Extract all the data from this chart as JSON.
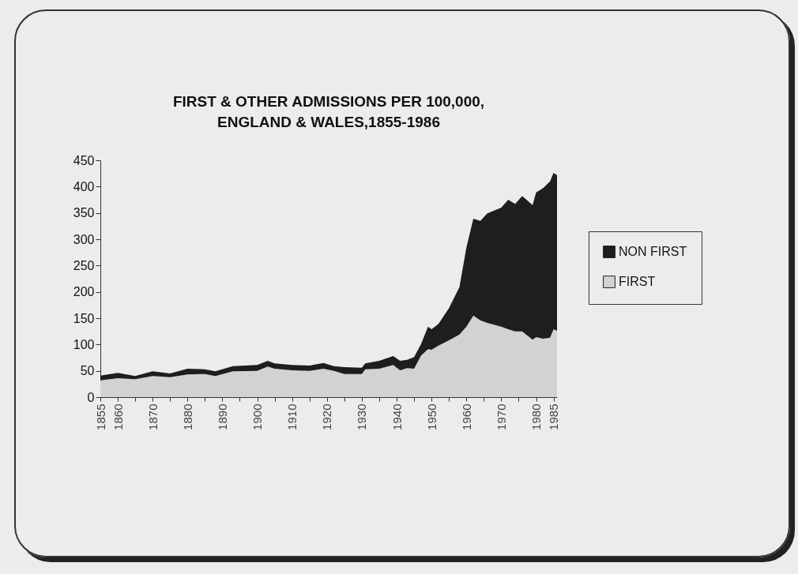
{
  "chart_data": {
    "type": "area",
    "title": "FIRST & OTHER ADMISSIONS PER 100,000,\nENGLAND & WALES,1855-1986",
    "stacked": true,
    "legend": "right",
    "grid": false,
    "x": [
      1855,
      1860,
      1865,
      1870,
      1875,
      1880,
      1885,
      1888,
      1893,
      1900,
      1903,
      1905,
      1910,
      1915,
      1919,
      1922,
      1925,
      1930,
      1931,
      1935,
      1939,
      1941,
      1943,
      1945,
      1947,
      1949,
      1950,
      1952,
      1955,
      1958,
      1960,
      1962,
      1964,
      1966,
      1970,
      1972,
      1974,
      1976,
      1979,
      1980,
      1982,
      1984,
      1985,
      1986
    ],
    "series": [
      {
        "name": "FIRST",
        "color": "#d2d2d2",
        "values": [
          32,
          36,
          34,
          40,
          38,
          43,
          44,
          40,
          49,
          50,
          58,
          54,
          51,
          50,
          54,
          50,
          44,
          44,
          53,
          54,
          61,
          51,
          55,
          54,
          79,
          91,
          90,
          98,
          108,
          119,
          134,
          155,
          146,
          141,
          134,
          129,
          125,
          125,
          109,
          114,
          111,
          113,
          129,
          126
        ]
      },
      {
        "name": "NON FIRST",
        "color": "#1e1e1e",
        "values": [
          9,
          10,
          6,
          9,
          7,
          11,
          9,
          9,
          10,
          11,
          11,
          10,
          10,
          10,
          11,
          9,
          13,
          12,
          11,
          15,
          17,
          18,
          16,
          22,
          22,
          43,
          39,
          41,
          61,
          90,
          150,
          184,
          189,
          208,
          226,
          246,
          242,
          257,
          256,
          275,
          286,
          297,
          297,
          296
        ]
      }
    ],
    "xlim": [
      1855,
      1986
    ],
    "xticks": [
      1855,
      1860,
      {
        "value": 1865,
        "label": null
      },
      1870,
      {
        "value": 1875,
        "label": null
      },
      1880,
      {
        "value": 1885,
        "label": null
      },
      1890,
      {
        "value": 1895,
        "label": null
      },
      1900,
      {
        "value": 1905,
        "label": null
      },
      1910,
      {
        "value": 1915,
        "label": null
      },
      1920,
      {
        "value": 1925,
        "label": null
      },
      1930,
      {
        "value": 1935,
        "label": null
      },
      1940,
      {
        "value": 1945,
        "label": null
      },
      1950,
      {
        "value": 1955,
        "label": null
      },
      1960,
      {
        "value": 1965,
        "label": null
      },
      1970,
      {
        "value": 1975,
        "label": null
      },
      1980,
      1985
    ],
    "ylim": [
      0,
      450
    ],
    "yticks": [
      0,
      50,
      100,
      150,
      200,
      250,
      300,
      350,
      400,
      450
    ]
  }
}
